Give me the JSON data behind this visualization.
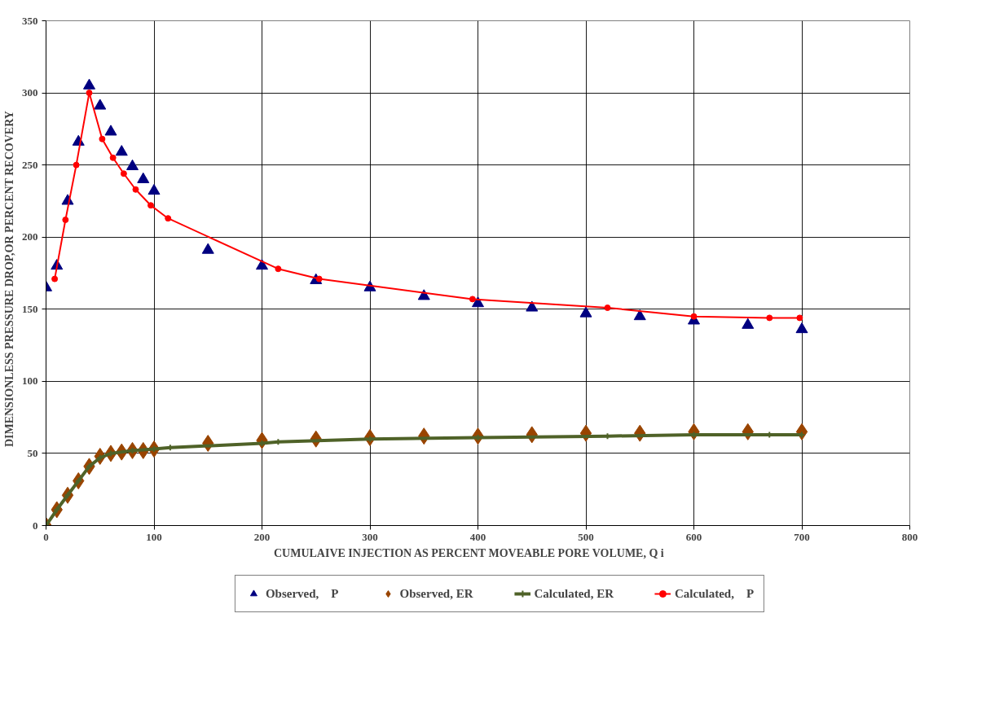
{
  "chart_data": {
    "type": "line",
    "xlabel": "CUMULAIVE   INJECTION  AS PERCENT  MOVEABLE  PORE VOLUME,  Q i",
    "ylabel": "DIMENSIONLESS   PRESSURE  DROP,OR  PERCENT RECOVERY",
    "xlim": [
      0,
      800
    ],
    "ylim": [
      0,
      350
    ],
    "xticks": [
      0,
      100,
      200,
      300,
      400,
      500,
      600,
      700,
      800
    ],
    "yticks": [
      0,
      50,
      100,
      150,
      200,
      250,
      300,
      350
    ],
    "grid": true,
    "legend": "bottom",
    "line_style": "solid",
    "series": [
      {
        "name": "Observed,    P",
        "type": "scatter",
        "marker": "triangle",
        "color": "#000080",
        "x": [
          0,
          10,
          20,
          30,
          40,
          50,
          60,
          70,
          80,
          90,
          100,
          150,
          200,
          250,
          300,
          350,
          400,
          450,
          500,
          550,
          600,
          650,
          700
        ],
        "values": [
          165,
          180,
          225,
          266,
          305,
          291,
          273,
          259,
          249,
          240,
          232,
          191,
          180,
          170,
          165,
          159,
          154,
          151,
          147,
          145,
          142,
          139,
          136
        ]
      },
      {
        "name": "Observed, ER",
        "type": "scatter",
        "marker": "diamond",
        "color": "#994400",
        "x": [
          0,
          10,
          20,
          30,
          40,
          50,
          60,
          70,
          80,
          90,
          100,
          150,
          200,
          250,
          300,
          350,
          400,
          450,
          500,
          550,
          600,
          650,
          700
        ],
        "values": [
          0,
          11,
          21,
          31,
          41,
          48,
          50,
          51,
          52,
          52,
          53,
          57,
          59,
          60,
          61,
          62,
          62,
          63,
          64,
          64,
          65,
          65,
          65
        ]
      },
      {
        "name": "Calculated, ER",
        "marker": "cross",
        "color": "#4f6228",
        "x": [
          0,
          10,
          20,
          30,
          40,
          50,
          60,
          80,
          100,
          115,
          200,
          215,
          300,
          400,
          520,
          600,
          670,
          700
        ],
        "values": [
          0,
          11,
          21,
          31,
          41,
          47,
          50,
          52,
          53,
          54,
          57,
          58,
          60,
          61,
          62,
          63,
          63,
          63
        ]
      },
      {
        "name": "Calculated,    P",
        "marker": "circle",
        "color": "#ff0000",
        "x": [
          8,
          18,
          28,
          40,
          52,
          62,
          72,
          83,
          97,
          113,
          215,
          253,
          395,
          520,
          600,
          670,
          698
        ],
        "values": [
          171,
          212,
          250,
          300,
          268,
          255,
          244,
          233,
          222,
          213,
          178,
          171,
          157,
          151,
          145,
          144,
          144
        ]
      }
    ]
  }
}
